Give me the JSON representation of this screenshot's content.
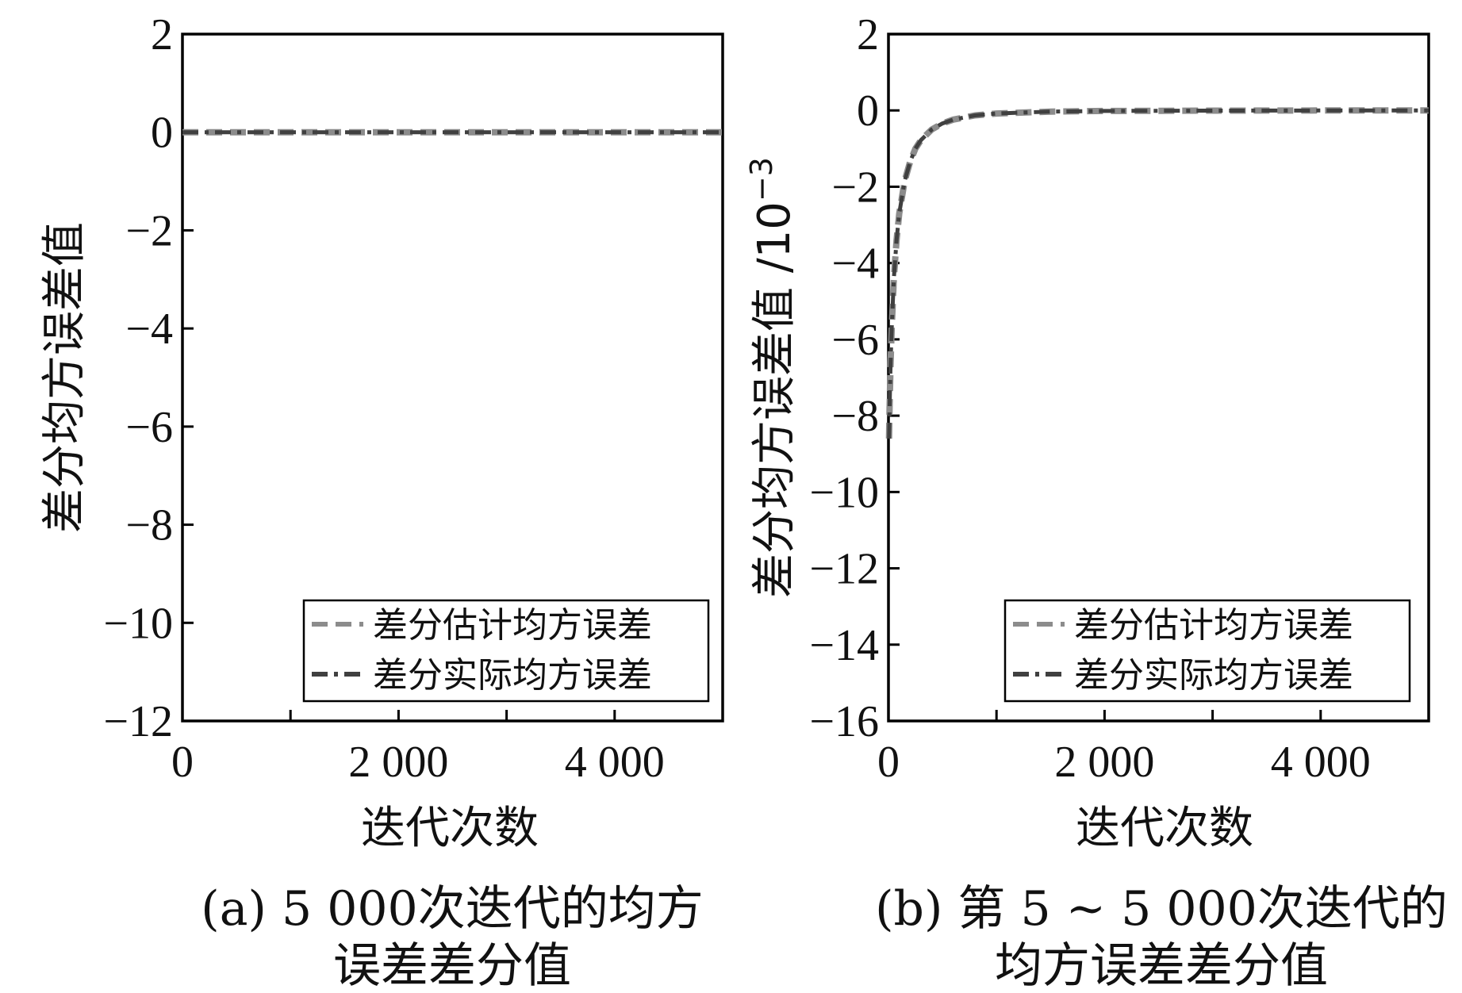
{
  "chart_data": [
    {
      "type": "line",
      "ylabel": "差分均方误差值",
      "xlabel": "迭代次数",
      "caption_line1": "(a) 5 000次迭代的均方",
      "caption_line2": "误差差分值",
      "xlim": [
        0,
        5000
      ],
      "ylim": [
        -12,
        2
      ],
      "x_ticks": [
        0,
        2000,
        4000
      ],
      "x_tick_labels": [
        "0",
        "2 000",
        "4 000"
      ],
      "x_minor_ticks": [
        1000,
        3000
      ],
      "y_ticks": [
        2,
        0,
        -2,
        -4,
        -6,
        -8,
        -10,
        -12
      ],
      "y_tick_labels": [
        "2",
        "0",
        "−2",
        "−4",
        "−6",
        "−8",
        "−10",
        "−12"
      ],
      "legend_position": "bottom-right",
      "grid": false,
      "series": [
        {
          "name": "差分估计均方误差",
          "color": "#8c8c8c",
          "dash": "dashed",
          "x": [
            0,
            500,
            1000,
            2000,
            3000,
            4000,
            5000
          ],
          "y": [
            0,
            0,
            0,
            0,
            0,
            0,
            0
          ]
        },
        {
          "name": "差分实际均方误差",
          "color": "#404040",
          "dash": "dashdot",
          "x": [
            0,
            500,
            1000,
            2000,
            3000,
            4000,
            5000
          ],
          "y": [
            0,
            0,
            0,
            0,
            0,
            0,
            0
          ]
        }
      ]
    },
    {
      "type": "line",
      "ylabel": "差分均方误差值 /10",
      "ylabel_exponent": "−3",
      "xlabel": "迭代次数",
      "caption_line1": "(b) 第 5 ~ 5 000次迭代的",
      "caption_line2": "均方误差差分值",
      "xlim": [
        0,
        5000
      ],
      "ylim": [
        -16,
        2
      ],
      "x_ticks": [
        0,
        2000,
        4000
      ],
      "x_tick_labels": [
        "0",
        "2 000",
        "4 000"
      ],
      "x_minor_ticks": [
        1000,
        3000
      ],
      "y_ticks": [
        2,
        0,
        -2,
        -4,
        -6,
        -8,
        -10,
        -12,
        -14,
        -16
      ],
      "y_tick_labels": [
        "2",
        "0",
        "−2",
        "−4",
        "−6",
        "−8",
        "−10",
        "−12",
        "−14",
        "−16"
      ],
      "legend_position": "bottom-right",
      "grid": false,
      "series": [
        {
          "name": "差分估计均方误差",
          "color": "#8c8c8c",
          "dash": "dashed",
          "x": [
            5,
            10,
            20,
            30,
            50,
            75,
            100,
            150,
            200,
            250,
            300,
            400,
            500,
            600,
            800,
            1000,
            1500,
            2000,
            3000,
            4000,
            5000
          ],
          "y": [
            -8.6,
            -7.8,
            -6.6,
            -5.7,
            -4.4,
            -3.4,
            -2.7,
            -1.85,
            -1.35,
            -1.0,
            -0.78,
            -0.5,
            -0.34,
            -0.24,
            -0.13,
            -0.08,
            -0.03,
            -0.015,
            -0.005,
            -0.002,
            0
          ]
        },
        {
          "name": "差分实际均方误差",
          "color": "#404040",
          "dash": "dashdot",
          "x": [
            5,
            10,
            20,
            30,
            50,
            75,
            100,
            150,
            200,
            250,
            300,
            400,
            500,
            600,
            800,
            1000,
            1500,
            2000,
            3000,
            4000,
            5000
          ],
          "y": [
            -8.6,
            -7.8,
            -6.6,
            -5.7,
            -4.4,
            -3.4,
            -2.7,
            -1.85,
            -1.35,
            -1.0,
            -0.78,
            -0.5,
            -0.34,
            -0.24,
            -0.13,
            -0.08,
            -0.03,
            -0.015,
            -0.005,
            -0.002,
            0
          ]
        }
      ]
    }
  ]
}
